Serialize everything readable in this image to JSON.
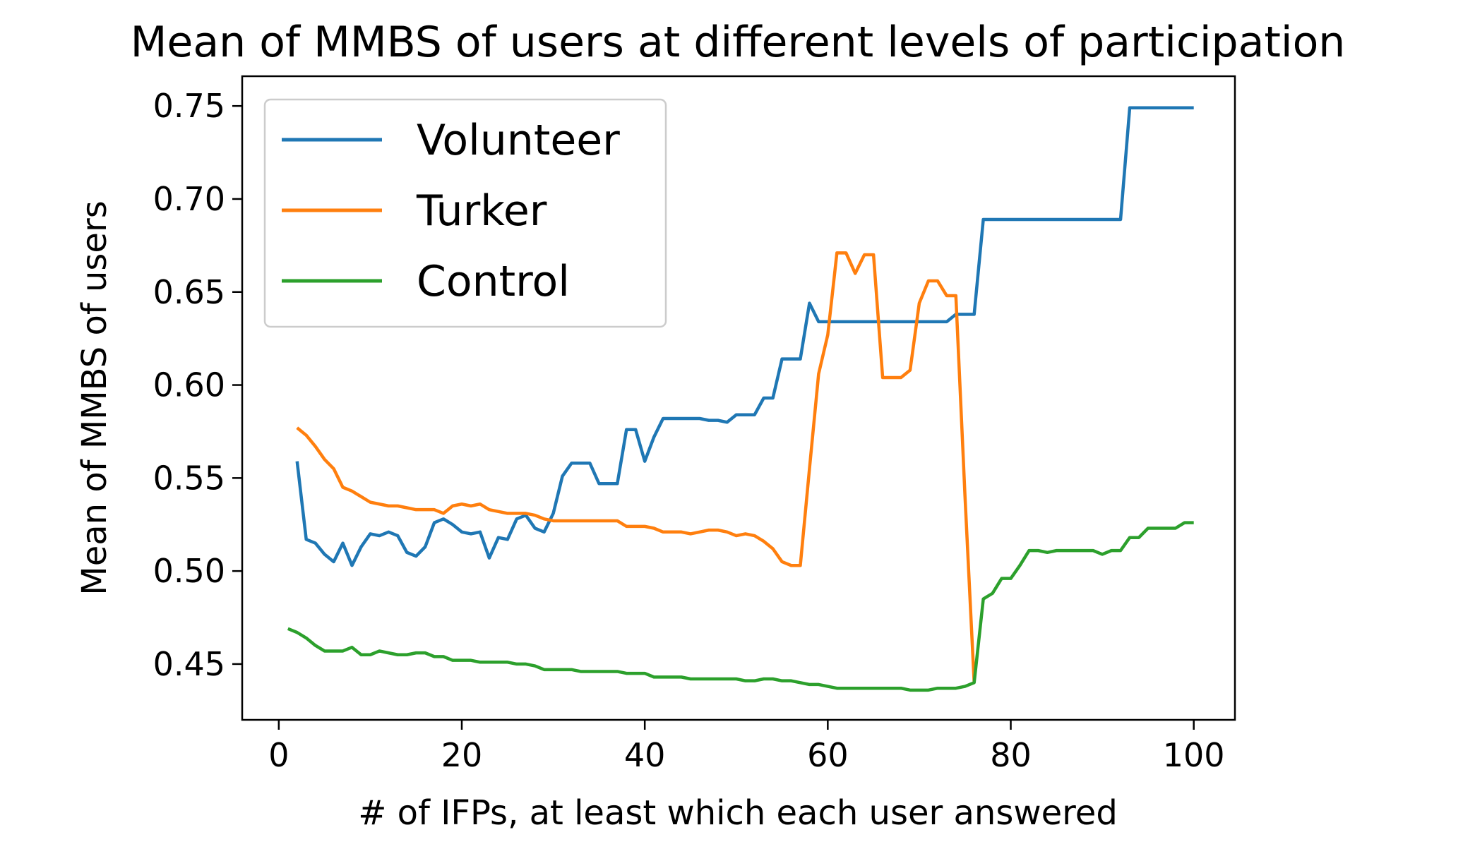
{
  "chart_data": {
    "type": "line",
    "title": "Mean of MMBS of users at different levels of participation",
    "xlabel": "# of IFPs, at least which each user answered",
    "ylabel": "Mean of MMBS of users",
    "xlim": [
      -4,
      104.5
    ],
    "ylim": [
      0.42,
      0.766
    ],
    "xticks": [
      0,
      20,
      40,
      60,
      80,
      100
    ],
    "xtick_labels": [
      "0",
      "20",
      "40",
      "60",
      "80",
      "100"
    ],
    "yticks": [
      0.45,
      0.5,
      0.55,
      0.6,
      0.65,
      0.7,
      0.75
    ],
    "ytick_labels": [
      "0.45",
      "0.50",
      "0.55",
      "0.60",
      "0.65",
      "0.70",
      "0.75"
    ],
    "grid": false,
    "legend": "top-left",
    "series": [
      {
        "name": "Volunteer",
        "color": "#1f77b4",
        "x": [
          2,
          3,
          4,
          5,
          6,
          7,
          8,
          9,
          10,
          11,
          12,
          13,
          14,
          15,
          16,
          17,
          18,
          19,
          20,
          21,
          22,
          23,
          24,
          25,
          26,
          27,
          28,
          29,
          30,
          31,
          32,
          33,
          34,
          35,
          36,
          37,
          38,
          39,
          40,
          41,
          42,
          43,
          44,
          45,
          46,
          47,
          48,
          49,
          50,
          51,
          52,
          53,
          54,
          55,
          56,
          57,
          58,
          59,
          60,
          61,
          62,
          63,
          64,
          65,
          66,
          67,
          68,
          69,
          70,
          71,
          72,
          73,
          74,
          75,
          76,
          77,
          78,
          79,
          80,
          81,
          82,
          83,
          84,
          85,
          86,
          87,
          88,
          89,
          90,
          91,
          92,
          93,
          94,
          95,
          96,
          97,
          98,
          99,
          100
        ],
        "y": [
          0.559,
          0.517,
          0.515,
          0.509,
          0.505,
          0.515,
          0.503,
          0.513,
          0.52,
          0.519,
          0.521,
          0.519,
          0.51,
          0.508,
          0.513,
          0.526,
          0.528,
          0.525,
          0.521,
          0.52,
          0.521,
          0.507,
          0.518,
          0.517,
          0.528,
          0.53,
          0.523,
          0.521,
          0.531,
          0.551,
          0.558,
          0.558,
          0.558,
          0.547,
          0.547,
          0.547,
          0.576,
          0.576,
          0.559,
          0.572,
          0.582,
          0.582,
          0.582,
          0.582,
          0.582,
          0.581,
          0.581,
          0.58,
          0.584,
          0.584,
          0.584,
          0.593,
          0.593,
          0.614,
          0.614,
          0.614,
          0.644,
          0.634,
          0.634,
          0.634,
          0.634,
          0.634,
          0.634,
          0.634,
          0.634,
          0.634,
          0.634,
          0.634,
          0.634,
          0.634,
          0.634,
          0.634,
          0.638,
          0.638,
          0.638,
          0.689,
          0.689,
          0.689,
          0.689,
          0.689,
          0.689,
          0.689,
          0.689,
          0.689,
          0.689,
          0.689,
          0.689,
          0.689,
          0.689,
          0.689,
          0.689,
          0.749,
          0.749,
          0.749,
          0.749,
          0.749,
          0.749,
          0.749,
          0.749
        ]
      },
      {
        "name": "Turker",
        "color": "#ff7f0e",
        "x": [
          2,
          3,
          4,
          5,
          6,
          7,
          8,
          9,
          10,
          11,
          12,
          13,
          14,
          15,
          16,
          17,
          18,
          19,
          20,
          21,
          22,
          23,
          24,
          25,
          26,
          27,
          28,
          29,
          30,
          31,
          32,
          33,
          34,
          35,
          36,
          37,
          38,
          39,
          40,
          41,
          42,
          43,
          44,
          45,
          46,
          47,
          48,
          49,
          50,
          51,
          52,
          53,
          54,
          55,
          56,
          57,
          58,
          59,
          60,
          61,
          62,
          63,
          64,
          65,
          66,
          67,
          68,
          69,
          70,
          71,
          72,
          73,
          74,
          75,
          76
        ],
        "y": [
          0.577,
          0.573,
          0.567,
          0.56,
          0.555,
          0.545,
          0.543,
          0.54,
          0.537,
          0.536,
          0.535,
          0.535,
          0.534,
          0.533,
          0.533,
          0.533,
          0.531,
          0.535,
          0.536,
          0.535,
          0.536,
          0.533,
          0.532,
          0.531,
          0.531,
          0.531,
          0.53,
          0.528,
          0.527,
          0.527,
          0.527,
          0.527,
          0.527,
          0.527,
          0.527,
          0.527,
          0.524,
          0.524,
          0.524,
          0.523,
          0.521,
          0.521,
          0.521,
          0.52,
          0.521,
          0.522,
          0.522,
          0.521,
          0.519,
          0.52,
          0.519,
          0.516,
          0.512,
          0.505,
          0.503,
          0.503,
          0.555,
          0.606,
          0.627,
          0.671,
          0.671,
          0.66,
          0.67,
          0.67,
          0.604,
          0.604,
          0.604,
          0.608,
          0.644,
          0.656,
          0.656,
          0.648,
          0.648,
          0.54,
          0.44
        ]
      },
      {
        "name": "Control",
        "color": "#2ca02c",
        "x": [
          1,
          2,
          3,
          4,
          5,
          6,
          7,
          8,
          9,
          10,
          11,
          12,
          13,
          14,
          15,
          16,
          17,
          18,
          19,
          20,
          21,
          22,
          23,
          24,
          25,
          26,
          27,
          28,
          29,
          30,
          31,
          32,
          33,
          34,
          35,
          36,
          37,
          38,
          39,
          40,
          41,
          42,
          43,
          44,
          45,
          46,
          47,
          48,
          49,
          50,
          51,
          52,
          53,
          54,
          55,
          56,
          57,
          58,
          59,
          60,
          61,
          62,
          63,
          64,
          65,
          66,
          67,
          68,
          69,
          70,
          71,
          72,
          73,
          74,
          75,
          76,
          77,
          78,
          79,
          80,
          81,
          82,
          83,
          84,
          85,
          86,
          87,
          88,
          89,
          90,
          91,
          92,
          93,
          94,
          95,
          96,
          97,
          98,
          99,
          100
        ],
        "y": [
          0.469,
          0.467,
          0.464,
          0.46,
          0.457,
          0.457,
          0.457,
          0.459,
          0.455,
          0.455,
          0.457,
          0.456,
          0.455,
          0.455,
          0.456,
          0.456,
          0.454,
          0.454,
          0.452,
          0.452,
          0.452,
          0.451,
          0.451,
          0.451,
          0.451,
          0.45,
          0.45,
          0.449,
          0.447,
          0.447,
          0.447,
          0.447,
          0.446,
          0.446,
          0.446,
          0.446,
          0.446,
          0.445,
          0.445,
          0.445,
          0.443,
          0.443,
          0.443,
          0.443,
          0.442,
          0.442,
          0.442,
          0.442,
          0.442,
          0.442,
          0.441,
          0.441,
          0.442,
          0.442,
          0.441,
          0.441,
          0.44,
          0.439,
          0.439,
          0.438,
          0.437,
          0.437,
          0.437,
          0.437,
          0.437,
          0.437,
          0.437,
          0.437,
          0.436,
          0.436,
          0.436,
          0.437,
          0.437,
          0.437,
          0.438,
          0.44,
          0.485,
          0.488,
          0.496,
          0.496,
          0.503,
          0.511,
          0.511,
          0.51,
          0.511,
          0.511,
          0.511,
          0.511,
          0.511,
          0.509,
          0.511,
          0.511,
          0.518,
          0.518,
          0.523,
          0.523,
          0.523,
          0.523,
          0.526,
          0.526
        ]
      }
    ]
  }
}
